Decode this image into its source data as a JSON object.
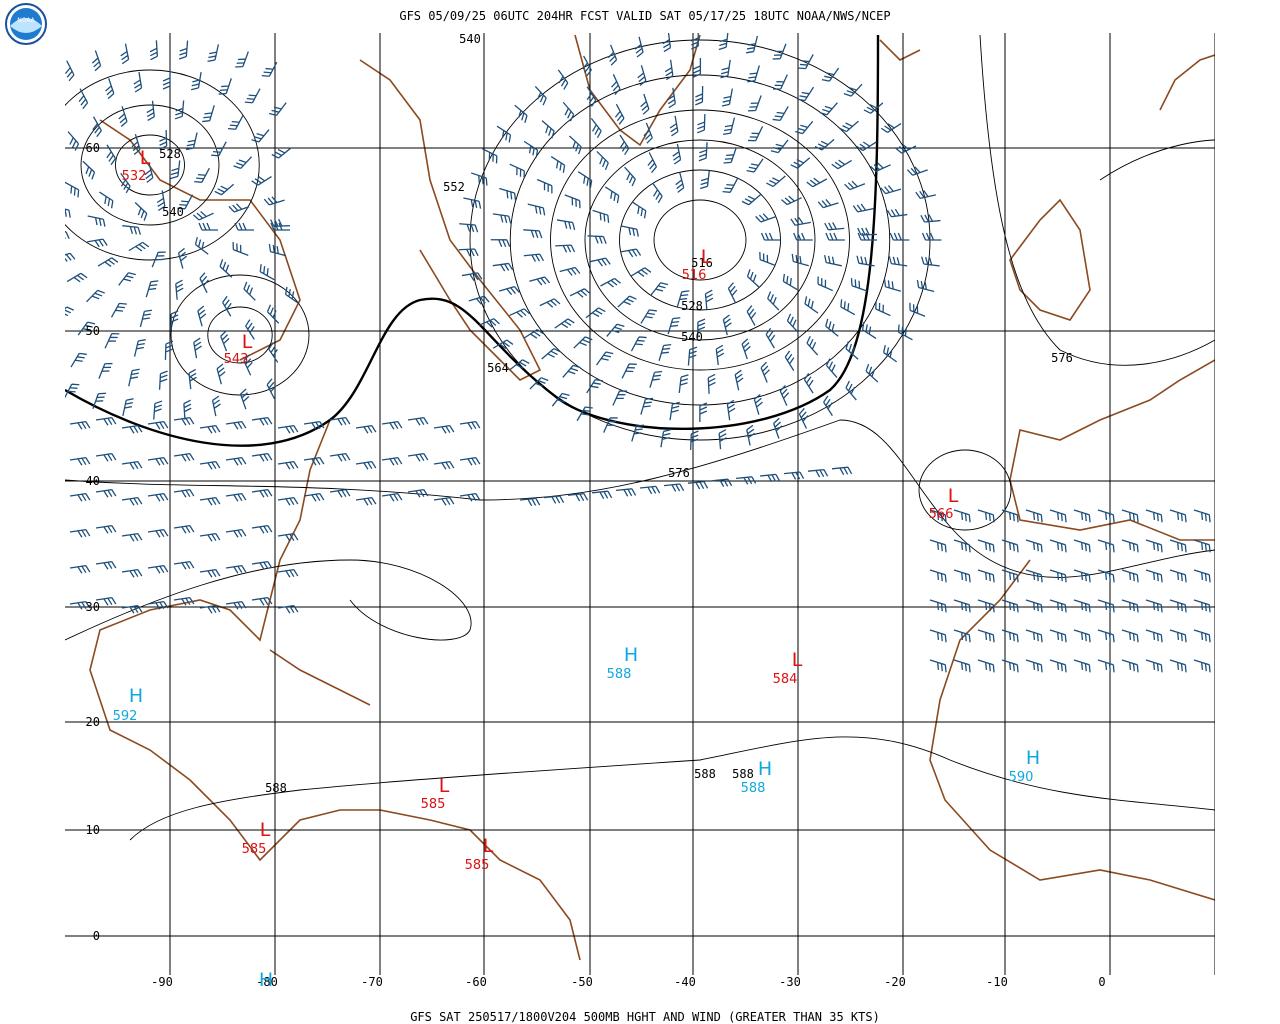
{
  "header": {
    "title": "GFS 05/09/25 06UTC 204HR FCST VALID SAT 05/17/25 18UTC NOAA/NWS/NCEP"
  },
  "footer": {
    "caption": "GFS SAT 250517/1800V204 500MB HGHT AND WIND (GREATER THAN 35 KTS)"
  },
  "logo": {
    "text": "NOAA"
  },
  "map": {
    "latitudes": [
      60,
      50,
      40,
      30,
      20,
      10,
      0
    ],
    "longitudes": [
      -90,
      -80,
      -70,
      -60,
      -50,
      -40,
      -30,
      -20,
      -10,
      0
    ],
    "contour_labels": [
      540,
      528,
      540,
      552,
      516,
      528,
      540,
      564,
      576,
      576,
      588,
      588,
      588
    ],
    "centers": [
      {
        "letter": "L",
        "value": 532
      },
      {
        "letter": "L",
        "value": 543
      },
      {
        "letter": "L",
        "value": 516
      },
      {
        "letter": "L",
        "value": 566
      },
      {
        "letter": "L",
        "value": 584
      },
      {
        "letter": "H",
        "value": 588
      },
      {
        "letter": "H",
        "value": 592
      },
      {
        "letter": "L",
        "value": 585
      },
      {
        "letter": "L",
        "value": 585
      },
      {
        "letter": "L",
        "value": 585
      },
      {
        "letter": "H",
        "value": 588
      },
      {
        "letter": "H",
        "value": 590
      },
      {
        "letter": "H"
      }
    ]
  }
}
